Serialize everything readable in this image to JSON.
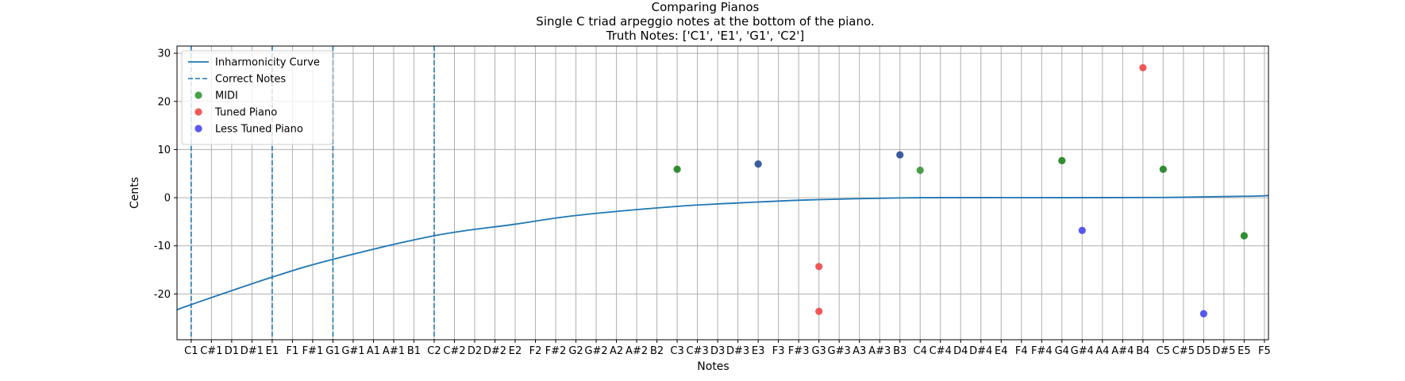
{
  "chart_data": {
    "type": "scatter",
    "title_lines": [
      "Comparing Pianos",
      "Single C triad arpeggio notes at the bottom of the piano.",
      "Truth Notes: ['C1', 'E1', 'G1', 'C2']"
    ],
    "xlabel": "Notes",
    "ylabel": "Cents",
    "ylim": [
      -29.5,
      31.5
    ],
    "yticks": [
      -20,
      -10,
      0,
      10,
      20,
      30
    ],
    "grid": true,
    "legend_position": "upper-left",
    "categories": [
      "C1",
      "C#1",
      "D1",
      "D#1",
      "E1",
      "F1",
      "F#1",
      "G1",
      "G#1",
      "A1",
      "A#1",
      "B1",
      "C2",
      "C#2",
      "D2",
      "D#2",
      "E2",
      "F2",
      "F#2",
      "G2",
      "G#2",
      "A2",
      "A#2",
      "B2",
      "C3",
      "C#3",
      "D3",
      "D#3",
      "E3",
      "F3",
      "F#3",
      "G3",
      "G#3",
      "A3",
      "A#3",
      "B3",
      "C4",
      "C#4",
      "D4",
      "D#4",
      "E4",
      "F4",
      "F#4",
      "G4",
      "G#4",
      "A4",
      "A#4",
      "B4",
      "C5",
      "C#5",
      "D5",
      "D#5",
      "E5",
      "F5"
    ],
    "correct_notes": [
      "C1",
      "E1",
      "G1",
      "C2"
    ],
    "inharmonicity_curve": {
      "name": "Inharmonicity Curve",
      "color": "#1f77b4",
      "x_start": -0.7,
      "x_end": 53.2,
      "points": [
        [
          "C1",
          -22.2
        ],
        [
          "E1",
          -16.5
        ],
        [
          "G1",
          -12.8
        ],
        [
          "C2",
          -7.9
        ],
        [
          "E2",
          -5.5
        ],
        [
          "G2",
          -3.7
        ],
        [
          "C3",
          -1.8
        ],
        [
          "E3",
          -0.9
        ],
        [
          "G3",
          -0.4
        ],
        [
          "C4",
          0.0
        ],
        [
          "G4",
          0.0
        ],
        [
          "C5",
          0.05
        ],
        [
          "E5",
          0.3
        ],
        [
          "F5",
          0.4
        ]
      ],
      "start_value": -23.3,
      "end_value": 0.5
    },
    "series": [
      {
        "name": "MIDI",
        "color": "#2a912a",
        "points": [
          [
            "C3",
            5.9
          ],
          [
            "C4",
            5.7
          ],
          [
            "G4",
            7.7
          ],
          [
            "C5",
            5.9
          ],
          [
            "E5",
            -7.9
          ]
        ]
      },
      {
        "name": "Tuned Piano",
        "color": "#f03c3c",
        "points": [
          [
            "G3",
            -14.3
          ],
          [
            "G3",
            -23.6
          ],
          [
            "B4",
            27.0
          ]
        ]
      },
      {
        "name": "Less Tuned Piano",
        "color": "#3c3cf0",
        "points": [
          [
            "E3",
            7.0
          ],
          [
            "B3",
            8.9
          ],
          [
            "G#4",
            -6.8
          ],
          [
            "D5",
            -24.1
          ]
        ]
      }
    ],
    "legend": [
      "Inharmonicity Curve",
      "Correct Notes",
      "MIDI",
      "Tuned Piano",
      "Less Tuned Piano"
    ],
    "dark_overlay_points": [
      [
        "C3",
        5.9
      ],
      [
        "E3",
        7.0
      ],
      [
        "B3",
        8.9
      ],
      [
        "G4",
        7.7
      ],
      [
        "C5",
        5.9
      ],
      [
        "E5",
        -7.9
      ]
    ]
  }
}
